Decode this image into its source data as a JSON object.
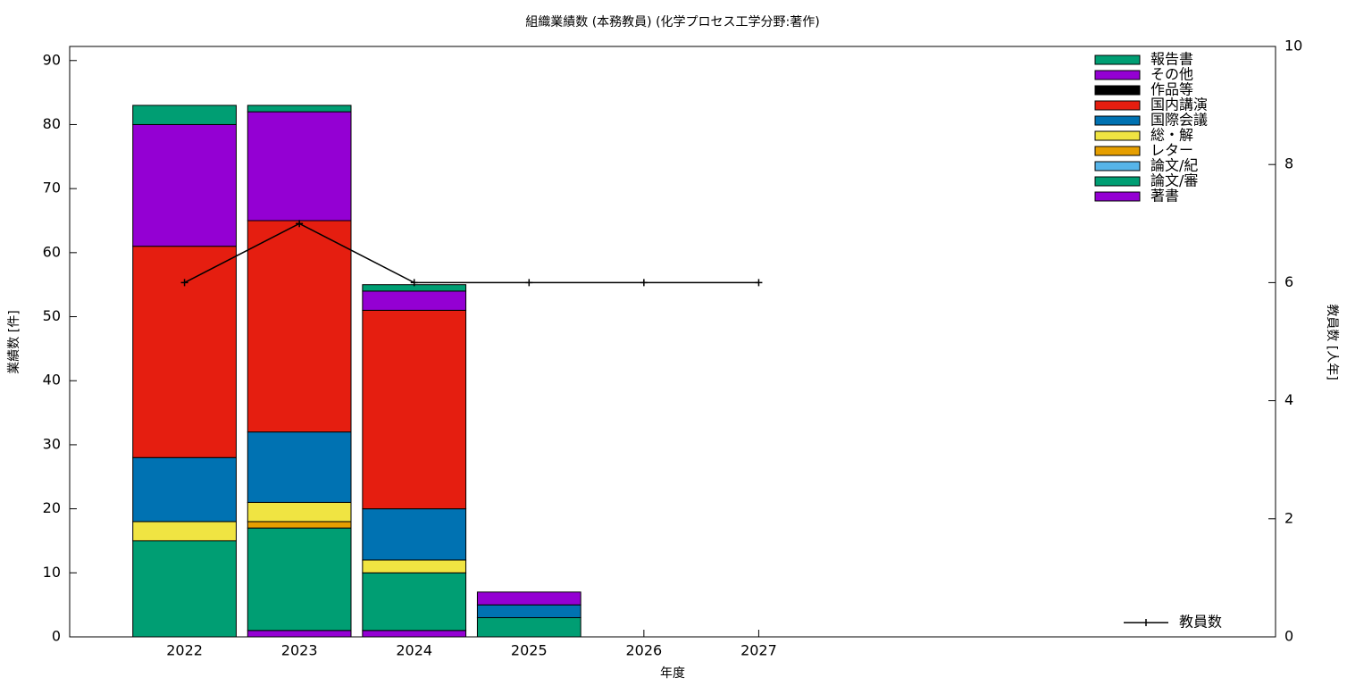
{
  "chart_data": {
    "type": "bar",
    "stacked": true,
    "title": "組織業績数 (本務教員) (化学プロセス工学分野:著作)",
    "x_label": "年度",
    "y_label": "業績数 [件]",
    "y2_label": "教員数 [人年]",
    "x": [
      2022,
      2023,
      2024,
      2025,
      2026,
      2027
    ],
    "xlim": [
      2021,
      2031.5
    ],
    "xticks": [
      2022,
      2023,
      2024,
      2025,
      2026,
      2027
    ],
    "ylim": [
      0,
      92.2
    ],
    "yticks": [
      0,
      10,
      20,
      30,
      40,
      50,
      60,
      70,
      80,
      90
    ],
    "y2lim": [
      0,
      10
    ],
    "y2ticks": [
      0,
      2,
      4,
      6,
      8,
      10
    ],
    "bar_width": 0.9,
    "series": [
      {
        "name": "著書",
        "color": "#9400d3",
        "values": [
          0,
          1,
          1,
          0,
          0,
          0
        ]
      },
      {
        "name": "論文/審",
        "color": "#009e73",
        "values": [
          15,
          16,
          9,
          3,
          0,
          0
        ]
      },
      {
        "name": "論文/紀",
        "color": "#56b4e9",
        "values": [
          0,
          0,
          0,
          0,
          0,
          0
        ]
      },
      {
        "name": "レター",
        "color": "#e69f00",
        "values": [
          0,
          1,
          0,
          0,
          0,
          0
        ]
      },
      {
        "name": "総・解",
        "color": "#f0e442",
        "values": [
          3,
          3,
          2,
          0,
          0,
          0
        ]
      },
      {
        "name": "国際会議",
        "color": "#0072b2",
        "values": [
          10,
          11,
          8,
          2,
          0,
          0
        ]
      },
      {
        "name": "国内講演",
        "color": "#e51e10",
        "values": [
          33,
          33,
          31,
          0,
          0,
          0
        ]
      },
      {
        "name": "作品等",
        "color": "#000000",
        "values": [
          0,
          0,
          0,
          0,
          0,
          0
        ]
      },
      {
        "name": "その他",
        "color": "#9400d3",
        "values": [
          19,
          17,
          3,
          2,
          0,
          0
        ]
      },
      {
        "name": "報告書",
        "color": "#009e73",
        "values": [
          3,
          1,
          1,
          0,
          0,
          0
        ]
      },
      {
        "name": "教員数",
        "color": "#000000",
        "type": "line",
        "axis": "y2",
        "values": [
          6,
          7,
          6,
          6,
          6,
          6
        ]
      }
    ]
  }
}
